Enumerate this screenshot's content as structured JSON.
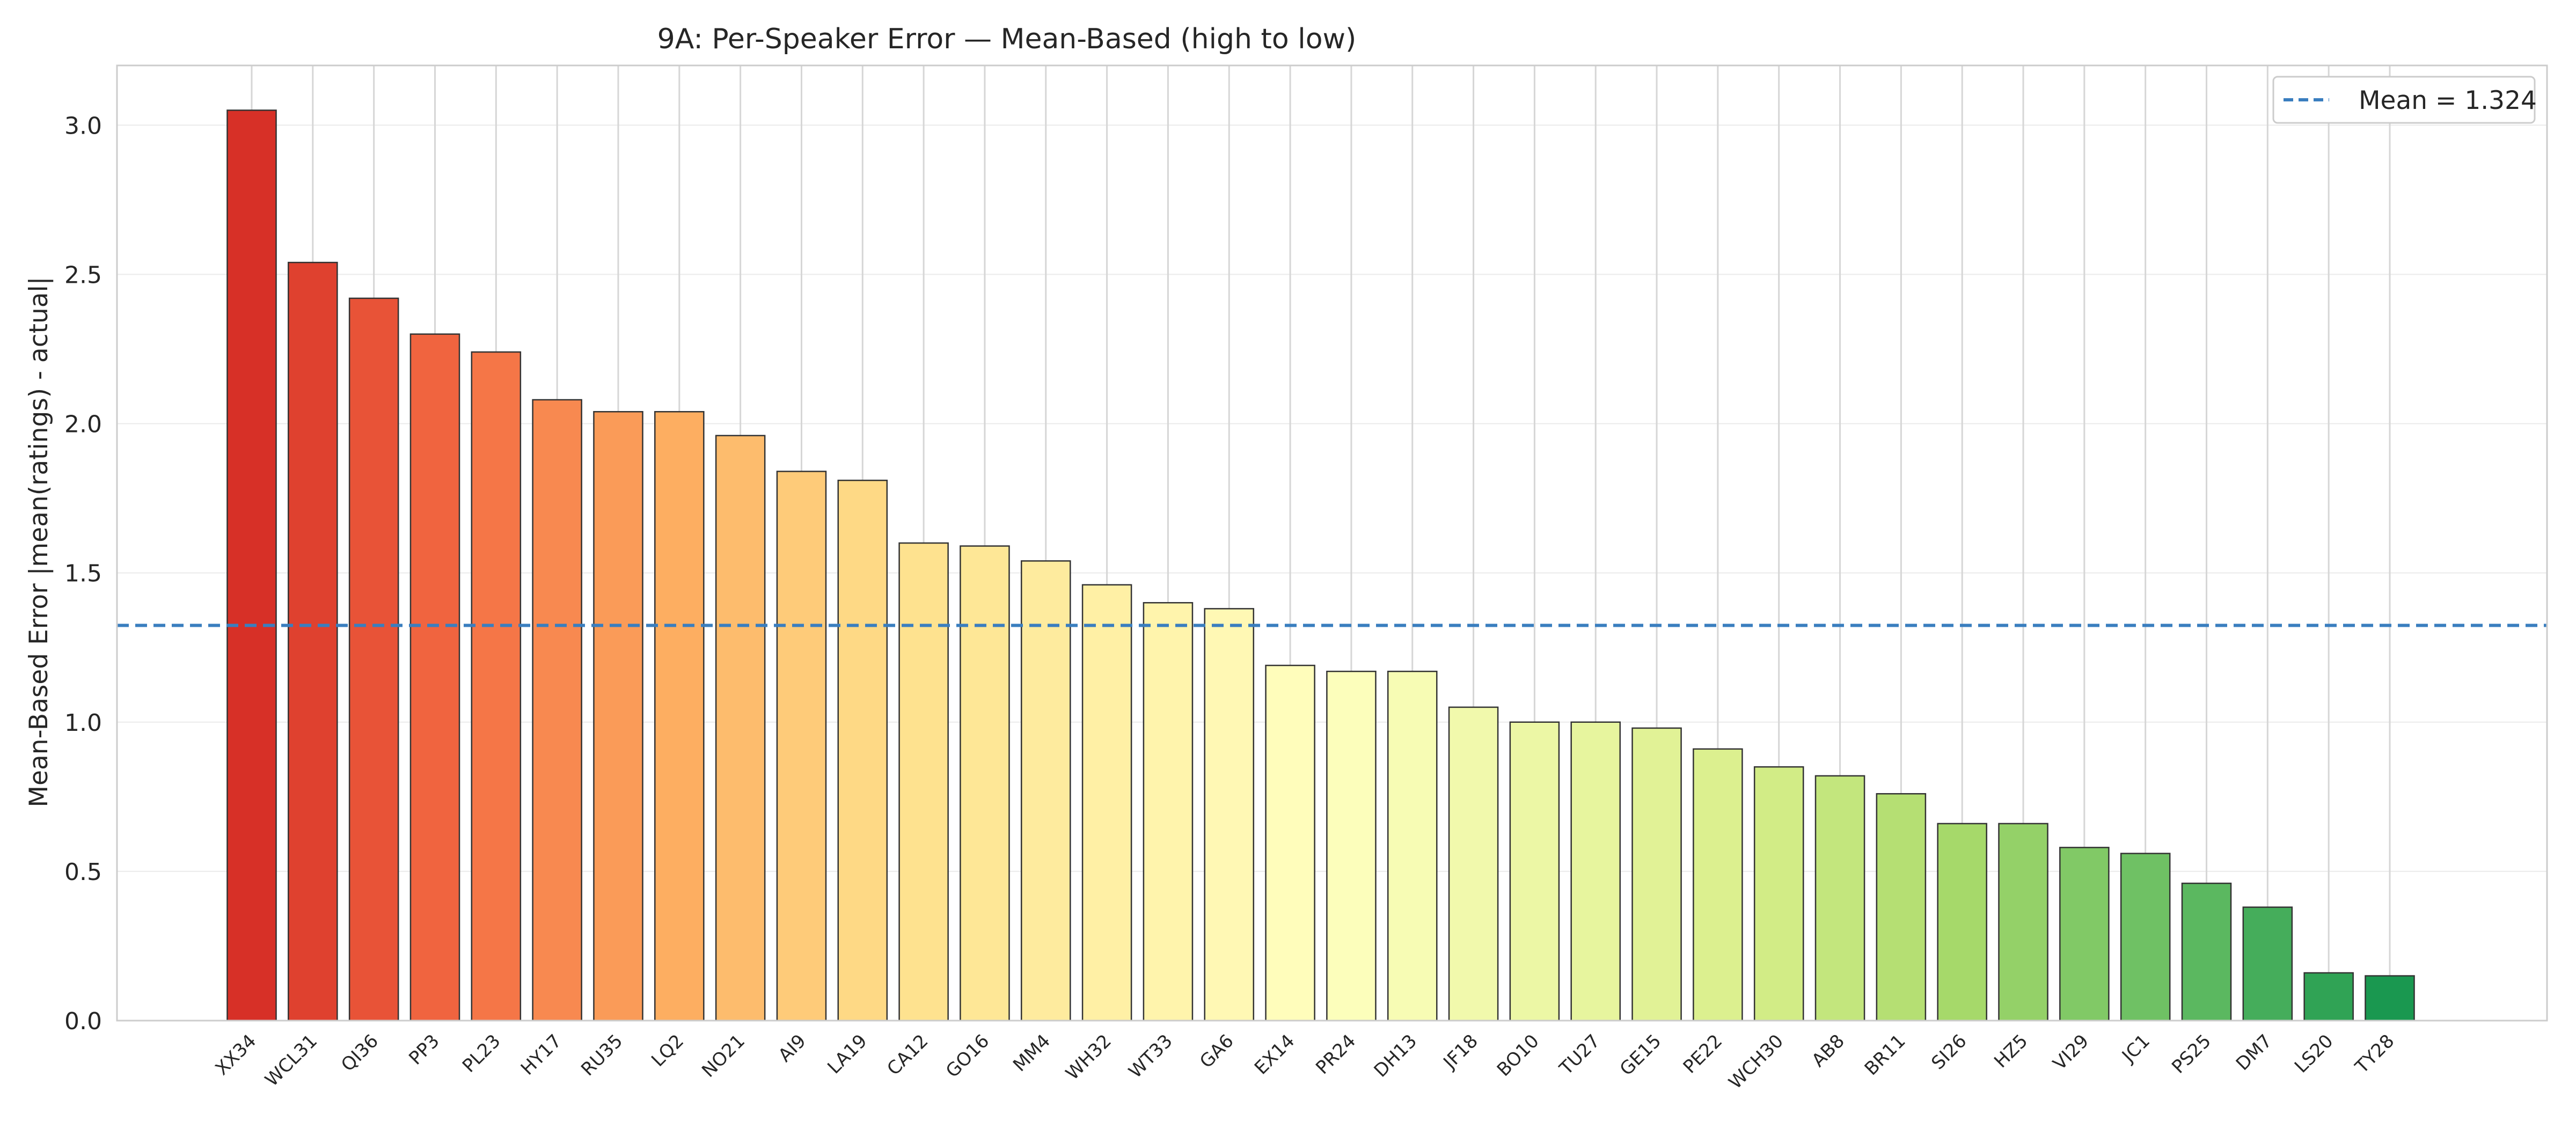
{
  "chart_data": {
    "type": "bar",
    "title": "9A: Per-Speaker Error — Mean-Based  (high to low)",
    "xlabel": "",
    "ylabel": "Mean-Based Error  |mean(ratings) - actual|",
    "ylim": [
      0,
      3.2
    ],
    "yticks": [
      "0.0",
      "0.5",
      "1.0",
      "1.5",
      "2.0",
      "2.5",
      "3.0"
    ],
    "grid": true,
    "legend_position": "top-right",
    "categories": [
      "XX34",
      "WCL31",
      "QI36",
      "PP3",
      "PL23",
      "HY17",
      "RU35",
      "LQ2",
      "NO21",
      "AI9",
      "LA19",
      "CA12",
      "GO16",
      "MM4",
      "WH32",
      "WT33",
      "GA6",
      "EX14",
      "PR24",
      "DH13",
      "JF18",
      "BO10",
      "TU27",
      "GE15",
      "PE22",
      "WCH30",
      "AB8",
      "BR11",
      "SI26",
      "HZ5",
      "VI29",
      "JC1",
      "PS25",
      "DM7",
      "LS20",
      "TY28"
    ],
    "values": [
      3.05,
      2.54,
      2.42,
      2.3,
      2.24,
      2.08,
      2.04,
      2.04,
      1.96,
      1.84,
      1.81,
      1.6,
      1.59,
      1.54,
      1.46,
      1.4,
      1.38,
      1.19,
      1.17,
      1.17,
      1.05,
      1.0,
      1.0,
      0.98,
      0.91,
      0.85,
      0.82,
      0.76,
      0.66,
      0.66,
      0.58,
      0.56,
      0.46,
      0.38,
      0.16,
      0.15
    ],
    "reference_line": {
      "value": 1.324,
      "label": "Mean = 1.324",
      "style": "dashed",
      "color": "#3a7ebf"
    },
    "colormap": "red-yellow-green (high to low)"
  }
}
